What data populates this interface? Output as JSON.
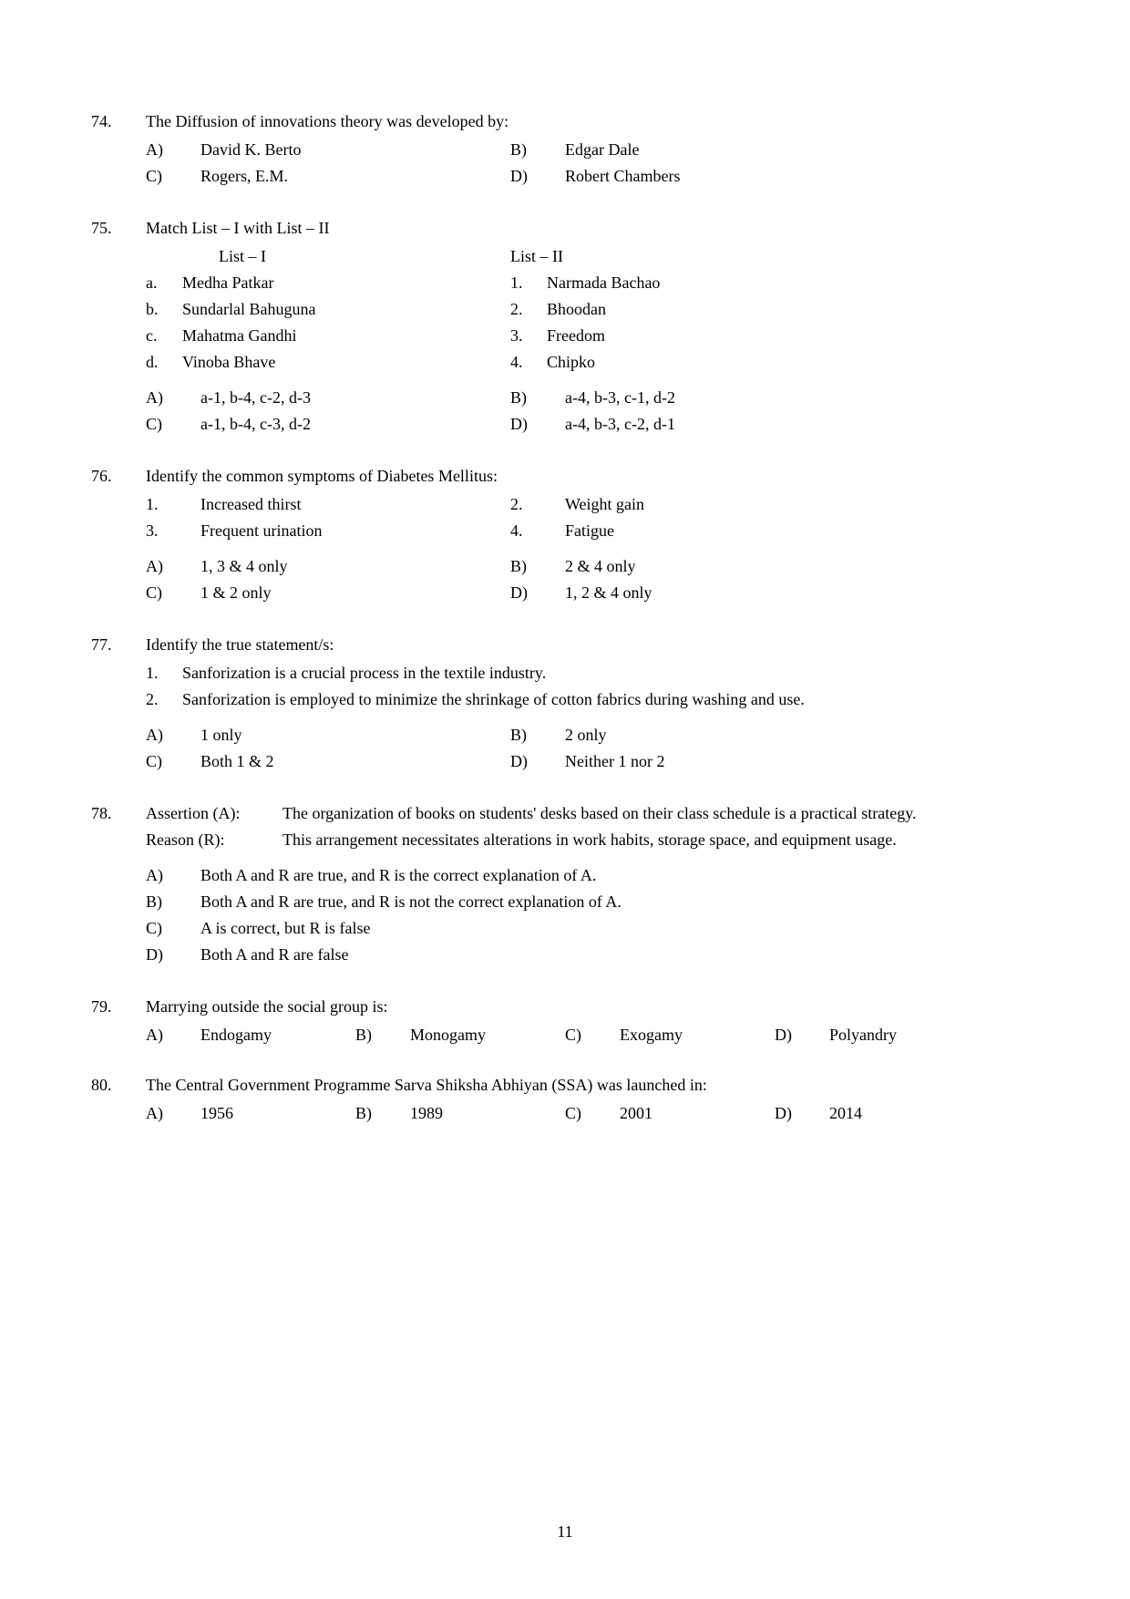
{
  "page_number": "11",
  "q74": {
    "num": "74.",
    "stem": "The Diffusion of innovations theory was developed by:",
    "optA_label": "A)",
    "optA_text": "David K. Berto",
    "optB_label": "B)",
    "optB_text": "Edgar Dale",
    "optC_label": "C)",
    "optC_text": "Rogers, E.M.",
    "optD_label": "D)",
    "optD_text": "Robert Chambers"
  },
  "q75": {
    "num": "75.",
    "stem": "Match List – I with List – II",
    "header_left": "List – I",
    "header_right": "List – II",
    "a_label": "a.",
    "a_text": "Medha Patkar",
    "b_label": "b.",
    "b_text": "Sundarlal Bahuguna",
    "c_label": "c.",
    "c_text": "Mahatma Gandhi",
    "d_label": "d.",
    "d_text": "Vinoba Bhave",
    "r1_label": "1.",
    "r1_text": "Narmada Bachao",
    "r2_label": "2.",
    "r2_text": "Bhoodan",
    "r3_label": "3.",
    "r3_text": "Freedom",
    "r4_label": "4.",
    "r4_text": "Chipko",
    "optA_label": "A)",
    "optA_text": "a-1, b-4, c-2, d-3",
    "optB_label": "B)",
    "optB_text": "a-4, b-3, c-1, d-2",
    "optC_label": "C)",
    "optC_text": "a-1, b-4, c-3, d-2",
    "optD_label": "D)",
    "optD_text": "a-4, b-3, c-2, d-1"
  },
  "q76": {
    "num": "76.",
    "stem": "Identify the common symptoms of Diabetes Mellitus:",
    "s1_label": "1.",
    "s1_text": "Increased thirst",
    "s2_label": "2.",
    "s2_text": "Weight gain",
    "s3_label": "3.",
    "s3_text": "Frequent urination",
    "s4_label": "4.",
    "s4_text": "Fatigue",
    "optA_label": "A)",
    "optA_text": "1, 3 & 4 only",
    "optB_label": "B)",
    "optB_text": "2 & 4 only",
    "optC_label": "C)",
    "optC_text": "1 & 2 only",
    "optD_label": "D)",
    "optD_text": "1, 2 & 4 only"
  },
  "q77": {
    "num": "77.",
    "stem": "Identify the true statement/s:",
    "s1_label": "1.",
    "s1_text": "Sanforization is a crucial process in the textile industry.",
    "s2_label": "2.",
    "s2_text": "Sanforization is employed to minimize the shrinkage of cotton fabrics during washing and use.",
    "optA_label": "A)",
    "optA_text": "1 only",
    "optB_label": "B)",
    "optB_text": "2 only",
    "optC_label": "C)",
    "optC_text": "Both 1 & 2",
    "optD_label": "D)",
    "optD_text": "Neither 1 nor 2"
  },
  "q78": {
    "num": "78.",
    "a_label": "Assertion (A):",
    "a_text": "The organization of books on students' desks based on their class schedule is a practical strategy.",
    "r_label": "Reason (R):",
    "r_text": "This arrangement necessitates alterations in work habits, storage space, and equipment usage.",
    "optA_label": "A)",
    "optA_text": "Both A and R are true, and R is the correct explanation of A.",
    "optB_label": "B)",
    "optB_text": "Both A and R are true, and R is not the correct explanation of A.",
    "optC_label": "C)",
    "optC_text": "A is correct, but R is false",
    "optD_label": "D)",
    "optD_text": "Both A and R are false"
  },
  "q79": {
    "num": "79.",
    "stem": "Marrying outside the social group is:",
    "optA_label": "A)",
    "optA_text": "Endogamy",
    "optB_label": "B)",
    "optB_text": "Monogamy",
    "optC_label": "C)",
    "optC_text": "Exogamy",
    "optD_label": "D)",
    "optD_text": "Polyandry"
  },
  "q80": {
    "num": "80.",
    "stem": "The Central Government Programme Sarva Shiksha Abhiyan (SSA) was launched in:",
    "optA_label": "A)",
    "optA_text": "1956",
    "optB_label": "B)",
    "optB_text": "1989",
    "optC_label": "C)",
    "optC_text": "2001",
    "optD_label": "D)",
    "optD_text": "2014"
  }
}
